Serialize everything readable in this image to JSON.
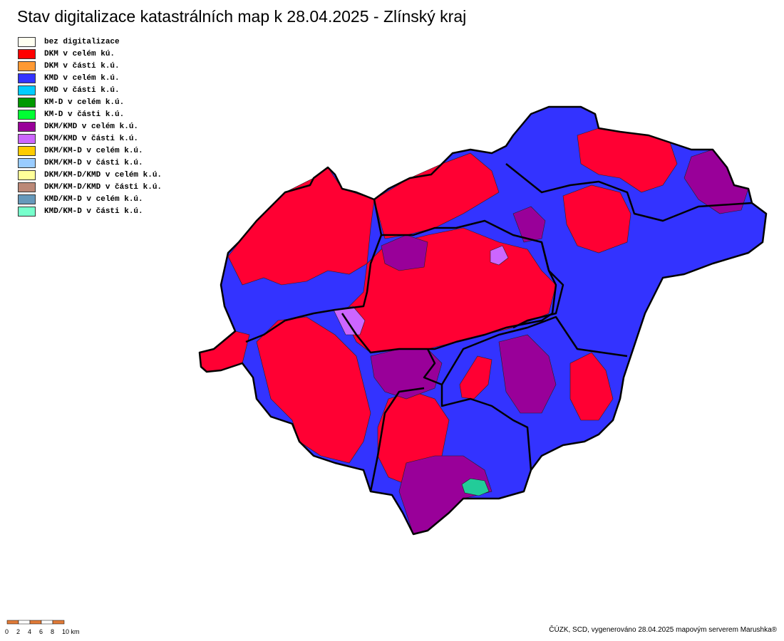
{
  "header": {
    "title": "Stav digitalizace katastrálních map k 28.04.2025 - Zlínský kraj"
  },
  "legend": {
    "items": [
      {
        "label": "bez digitalizace",
        "color": "#fffff0"
      },
      {
        "label": "DKM v celém kú.",
        "color": "#ff0000"
      },
      {
        "label": "DKM v části k.ú.",
        "color": "#ff9933"
      },
      {
        "label": "KMD v celém k.ú.",
        "color": "#3333ff"
      },
      {
        "label": "KMD v části k.ú.",
        "color": "#00ccff"
      },
      {
        "label": "KM-D v celém k.ú.",
        "color": "#009900"
      },
      {
        "label": "KM-D v části k.ú.",
        "color": "#00ff33"
      },
      {
        "label": "DKM/KMD v celém k.ú.",
        "color": "#990099"
      },
      {
        "label": "DKM/KMD v části k.ú.",
        "color": "#cc66ff"
      },
      {
        "label": "DKM/KM-D v celém k.ú.",
        "color": "#ffcc00"
      },
      {
        "label": "DKM/KM-D v části k.ú.",
        "color": "#99ccff"
      },
      {
        "label": "DKM/KM-D/KMD v celém k.ú.",
        "color": "#ffff99"
      },
      {
        "label": "DKM/KM-D/KMD v části k.ú.",
        "color": "#bb8877"
      },
      {
        "label": "KMD/KM-D v celém k.ú.",
        "color": "#6699bb"
      },
      {
        "label": "KMD/KM-D v části k.ú.",
        "color": "#77ffcc"
      }
    ]
  },
  "scale": {
    "labels": [
      "0",
      "2",
      "4",
      "6",
      "8",
      "10 km"
    ]
  },
  "footer": {
    "credit": "ČÚZK, SCD, vygenerováno 28.04.2025 mapovým serverem Marushka®"
  }
}
